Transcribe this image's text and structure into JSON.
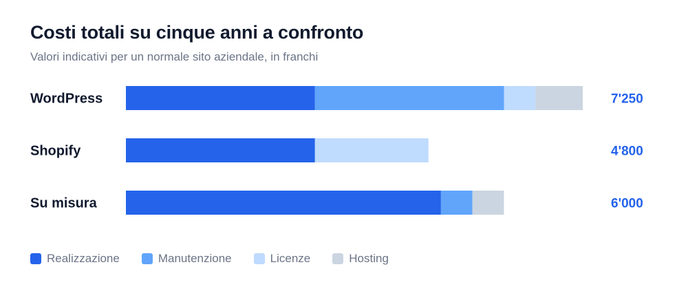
{
  "chart_data": {
    "type": "bar",
    "orientation": "horizontal",
    "stacked": true,
    "title": "Costi totali su cinque anni a confronto",
    "subtitle": "Valori indicativi per un normale sito aziendale, in franchi",
    "categories": [
      "WordPress",
      "Shopify",
      "Su misura"
    ],
    "series": [
      {
        "name": "Realizzazione",
        "color": "#2563eb",
        "values": [
          3000,
          3000,
          5000
        ]
      },
      {
        "name": "Manutenzione",
        "color": "#60a5fa",
        "values": [
          3000,
          0,
          500
        ]
      },
      {
        "name": "Licenze",
        "color": "#bfdbfe",
        "values": [
          500,
          1800,
          0
        ]
      },
      {
        "name": "Hosting",
        "color": "#cbd5e1",
        "values": [
          750,
          0,
          500
        ]
      }
    ],
    "totals": [
      "7'250",
      "4'800",
      "6'000"
    ],
    "total_color": "#2563eb",
    "xlim": [
      0,
      7250
    ],
    "grid": false,
    "legend_position": "bottom-left"
  }
}
